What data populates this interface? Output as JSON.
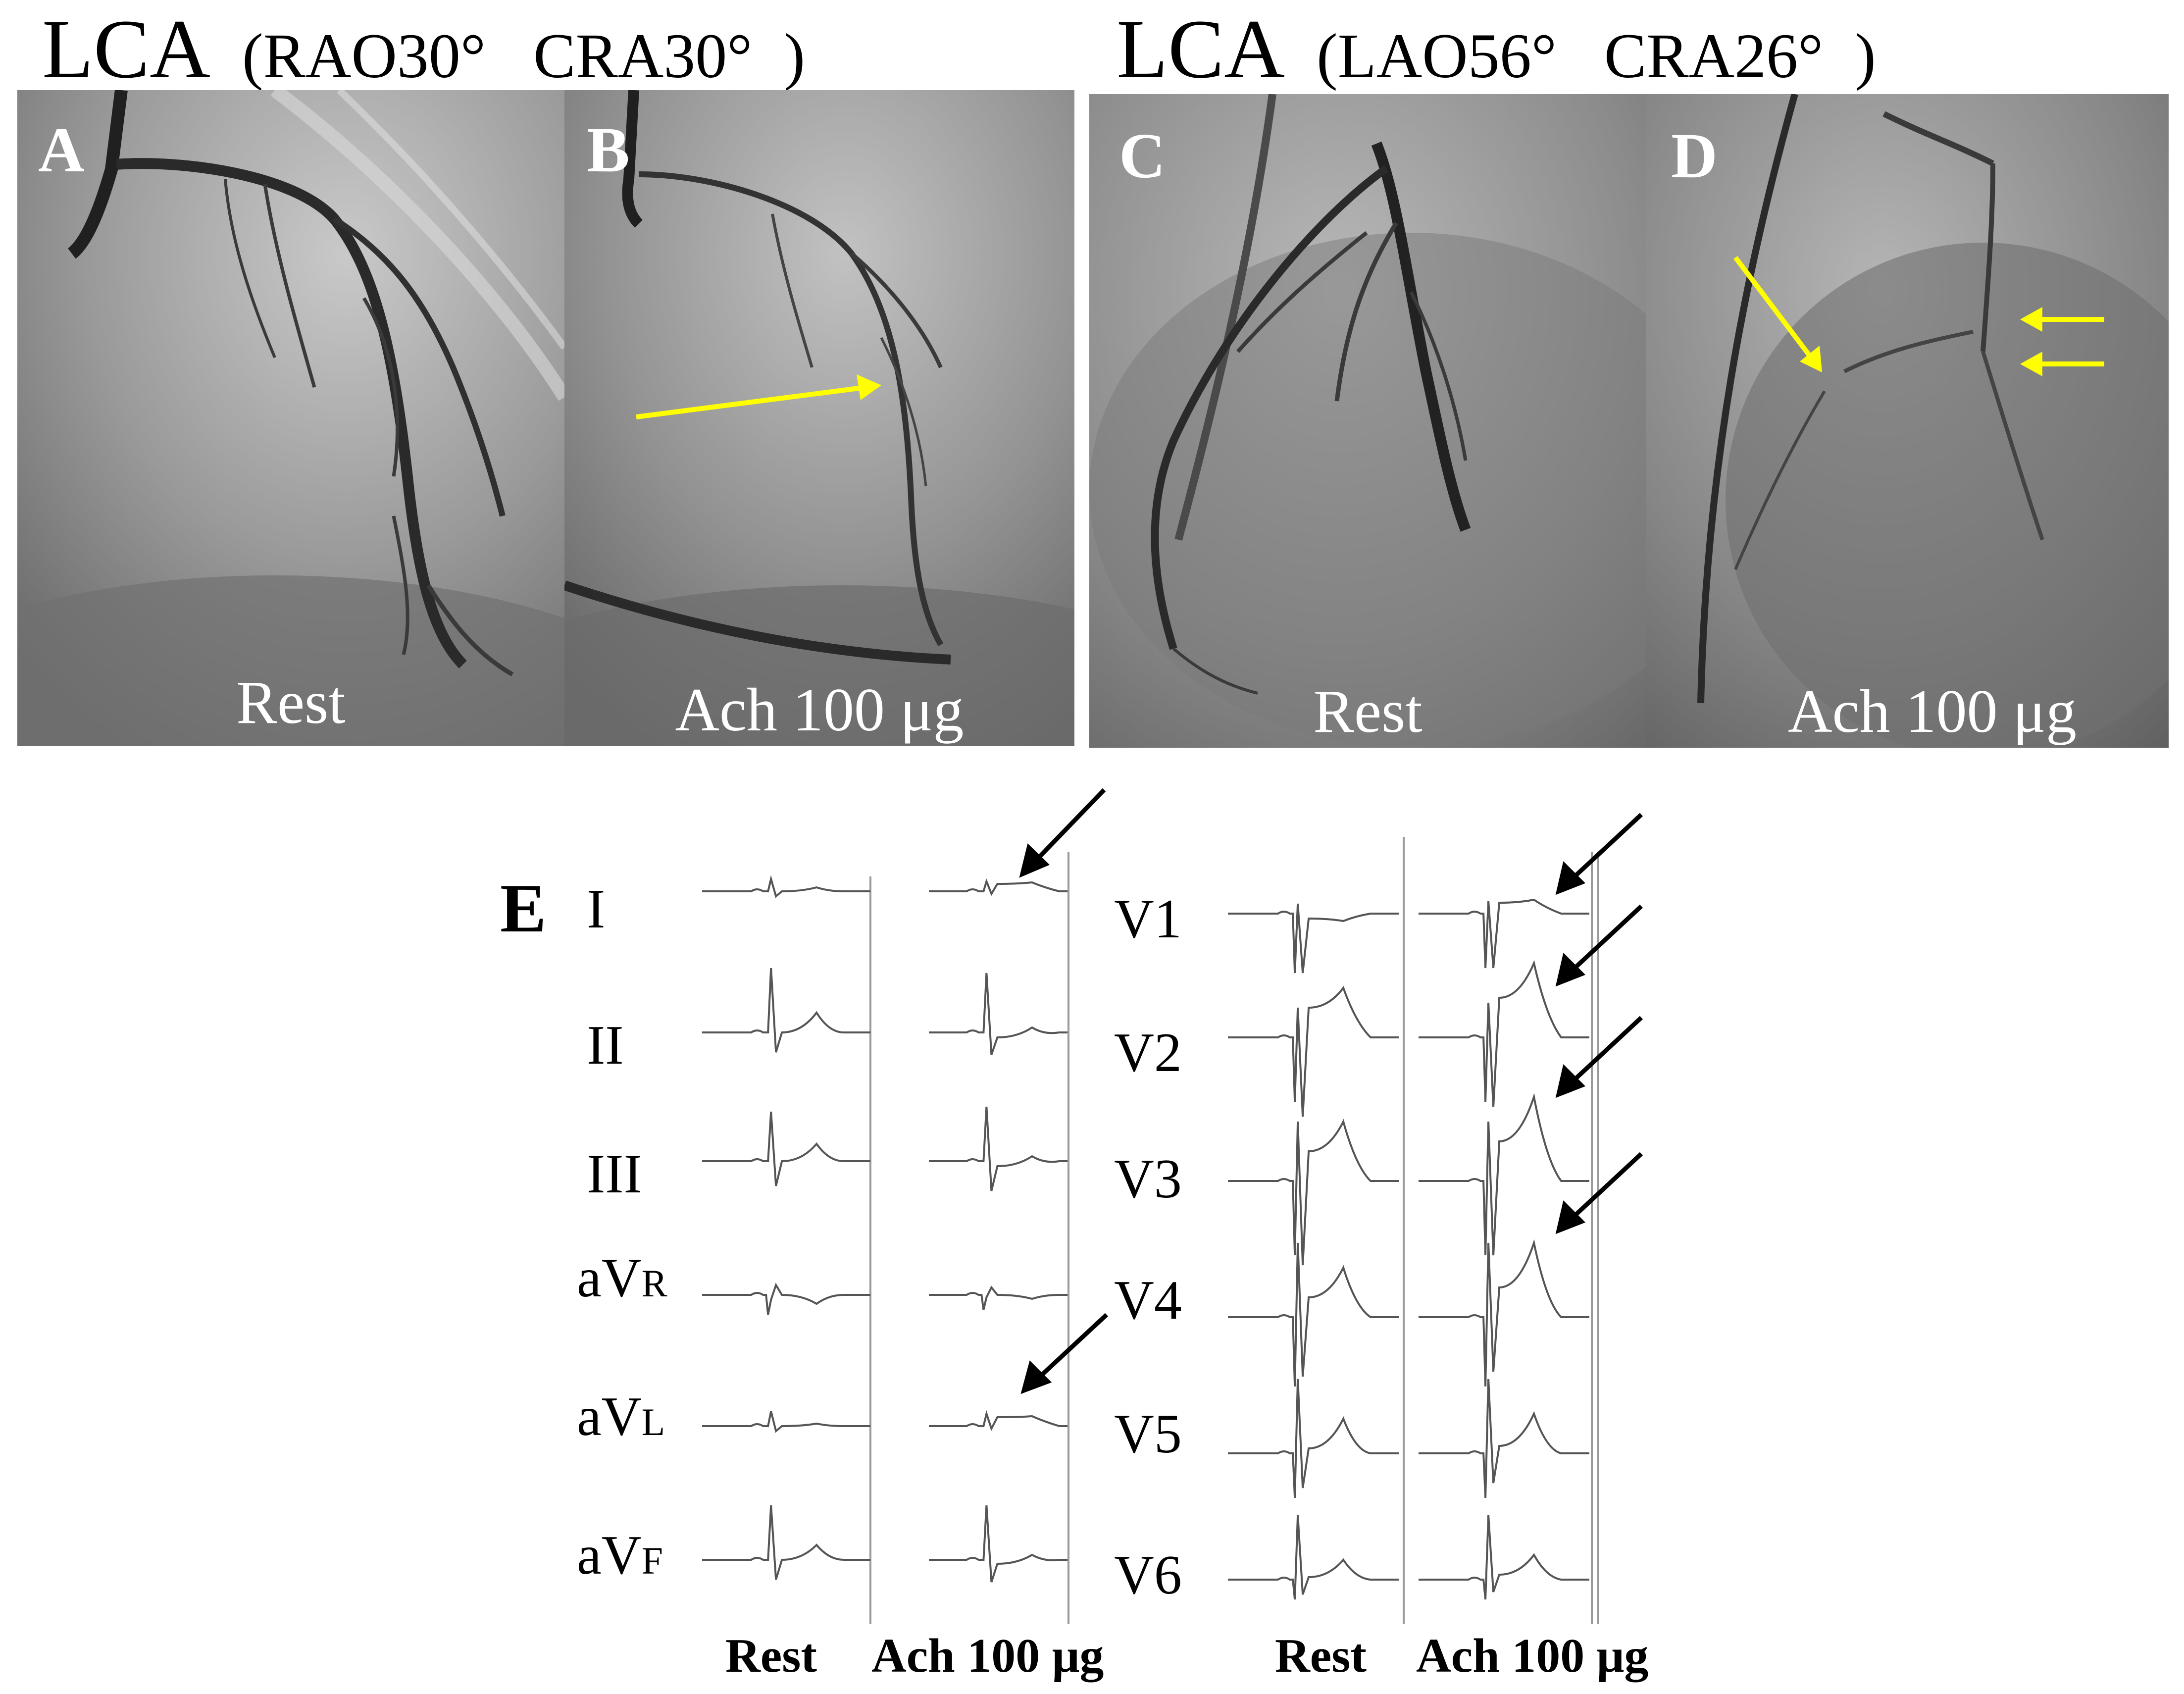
{
  "figure": {
    "title_left": {
      "main": "LCA",
      "sub": "(RAO30°   CRA30°  )"
    },
    "title_right": {
      "main": "LCA",
      "sub": "(LAO56°   CRA26°  )"
    },
    "panels": [
      {
        "letter": "A",
        "caption": "Rest"
      },
      {
        "letter": "B",
        "caption": "Ach 100 μg"
      },
      {
        "letter": "C",
        "caption": "Rest"
      },
      {
        "letter": "D",
        "caption": "Ach 100 μg"
      }
    ],
    "ecg": {
      "panel_label": "E",
      "limb_leads": [
        {
          "name": "I",
          "sub": ""
        },
        {
          "name": "II",
          "sub": ""
        },
        {
          "name": "III",
          "sub": ""
        },
        {
          "name": "aV",
          "sub": "R"
        },
        {
          "name": "aV",
          "sub": "L"
        },
        {
          "name": "aV",
          "sub": "F"
        }
      ],
      "chest_leads": [
        "V1",
        "V2",
        "V3",
        "V4",
        "V5",
        "V6"
      ],
      "columns": [
        "Rest",
        "Ach 100 μg",
        "Rest",
        "Ach 100 μg"
      ]
    },
    "colors": {
      "arrow_yellow": "#ffff00",
      "arrow_black": "#000000",
      "trace": "#555555"
    }
  }
}
